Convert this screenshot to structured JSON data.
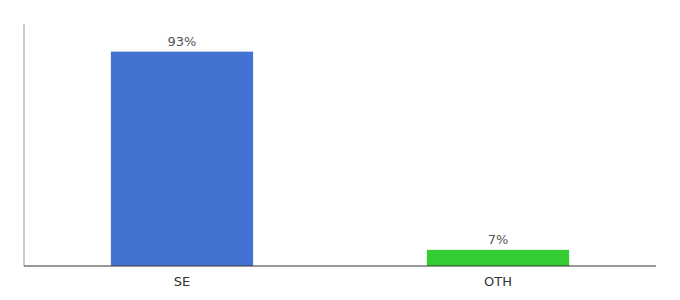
{
  "chart_data": {
    "type": "bar",
    "categories": [
      "SE",
      "OTH"
    ],
    "values": [
      93,
      7
    ],
    "value_labels": [
      "93%",
      "7%"
    ],
    "colors": [
      "#4472D3",
      "#33CC33"
    ],
    "ylim": [
      0,
      105
    ],
    "data_labels": true,
    "tick_labels": "x",
    "grid": false
  }
}
